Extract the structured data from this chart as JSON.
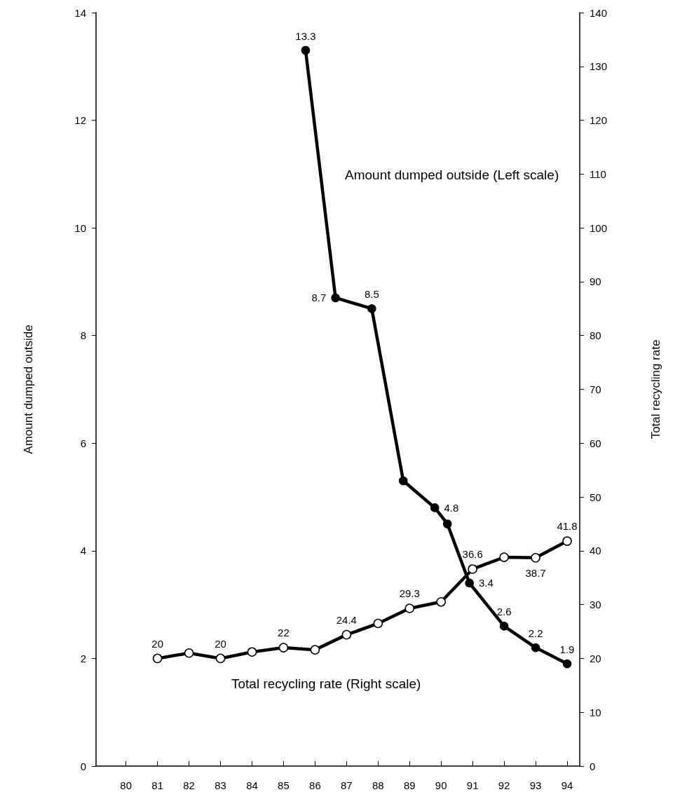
{
  "chart_data": {
    "type": "line",
    "xlabel": null,
    "ylabel": "Amount dumped outside",
    "y2label": "Total recycling rate",
    "xlim": [
      79.05,
      94.4
    ],
    "xticks": [
      80,
      81,
      82,
      83,
      84,
      85,
      86,
      87,
      88,
      89,
      90,
      91,
      92,
      93,
      94
    ],
    "ylim": [
      0,
      14
    ],
    "yticks": [
      0,
      2,
      4,
      6,
      8,
      10,
      12,
      14
    ],
    "y2lim": [
      0,
      140
    ],
    "y2ticks": [
      0,
      10,
      20,
      30,
      40,
      50,
      60,
      70,
      80,
      90,
      100,
      110,
      120,
      130,
      140
    ],
    "series": [
      {
        "name": "Amount dumped outside (Left scale)",
        "color": "#000000",
        "marker": "circle",
        "x": [
          85.7,
          86.65,
          87.8,
          88.8,
          89.8,
          90.2,
          90.9,
          92.0,
          93.0,
          94.0
        ],
        "values": [
          13.3,
          8.7,
          8.5,
          5.3,
          4.8,
          4.5,
          3.4,
          2.6,
          2.2,
          1.9
        ],
        "value_labels": [
          "13.3",
          "8.7",
          "8.5",
          null,
          "4.8",
          null,
          "3.4",
          "2.6",
          "2.2",
          "1.9"
        ]
      },
      {
        "name": "Total recycling rate (Right scale)",
        "color": "#000000",
        "marker": "circle",
        "axis": "y2",
        "x": [
          81,
          82,
          83,
          84,
          85,
          86,
          87,
          88,
          89,
          90,
          91,
          92,
          93,
          94
        ],
        "values": [
          20,
          21,
          20,
          21.2,
          22,
          21.6,
          24.4,
          26.5,
          29.3,
          30.5,
          36.6,
          38.8,
          38.7,
          41.8
        ],
        "value_labels": [
          "20",
          null,
          "20",
          null,
          "22",
          null,
          "24.4",
          null,
          "29.3",
          null,
          "36.6",
          null,
          "38.7",
          "41.8"
        ]
      }
    ],
    "legend": false,
    "grid": false,
    "line_style": "solid"
  }
}
